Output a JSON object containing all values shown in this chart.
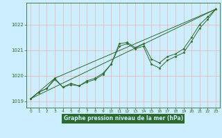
{
  "title": "Graphe pression niveau de la mer (hPa)",
  "bg_color": "#cceeff",
  "plot_bg_color": "#cceeff",
  "grid_color": "#e8b4b4",
  "line_color": "#2d6a2d",
  "xlabel_bg": "#2d6a2d",
  "xlabel_fg": "#cceeff",
  "xlim": [
    -0.5,
    23.5
  ],
  "ylim": [
    1018.75,
    1022.85
  ],
  "yticks": [
    1019,
    1020,
    1021,
    1022
  ],
  "xticks": [
    0,
    1,
    2,
    3,
    4,
    5,
    6,
    7,
    8,
    9,
    10,
    11,
    12,
    13,
    14,
    15,
    16,
    17,
    18,
    19,
    20,
    21,
    22,
    23
  ],
  "series1_x": [
    0,
    1,
    2,
    3,
    4,
    5,
    6,
    7,
    8,
    9,
    10,
    11,
    12,
    13,
    14,
    15,
    16,
    17,
    18,
    19,
    20,
    21,
    22,
    23
  ],
  "series1_y": [
    1019.1,
    1019.35,
    1019.5,
    1019.85,
    1019.55,
    1019.65,
    1019.6,
    1019.75,
    1019.85,
    1020.05,
    1020.45,
    1021.25,
    1021.3,
    1021.1,
    1021.25,
    1020.65,
    1020.5,
    1020.75,
    1020.85,
    1021.05,
    1021.5,
    1022.0,
    1022.3,
    1022.6
  ],
  "series2_x": [
    0,
    1,
    2,
    3,
    4,
    5,
    6,
    7,
    8,
    9,
    10,
    11,
    12,
    13,
    14,
    15,
    16,
    17,
    18,
    19,
    20,
    21,
    22,
    23
  ],
  "series2_y": [
    1019.1,
    1019.35,
    1019.5,
    1019.9,
    1019.55,
    1019.7,
    1019.6,
    1019.8,
    1019.9,
    1020.1,
    1020.45,
    1021.15,
    1021.25,
    1021.05,
    1021.15,
    1020.45,
    1020.3,
    1020.6,
    1020.75,
    1020.9,
    1021.35,
    1021.85,
    1022.2,
    1022.6
  ],
  "series3_x": [
    0,
    23
  ],
  "series3_y": [
    1019.1,
    1022.6
  ],
  "series4_x": [
    0,
    3,
    23
  ],
  "series4_y": [
    1019.1,
    1019.9,
    1022.6
  ]
}
